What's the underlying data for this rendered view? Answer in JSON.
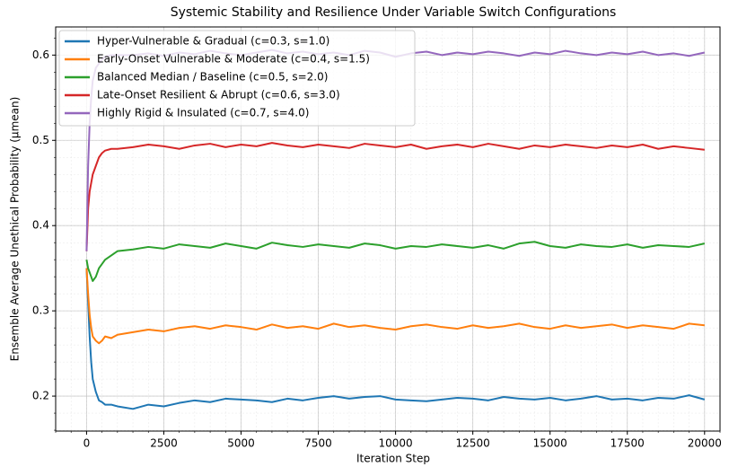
{
  "chart_data": {
    "type": "line",
    "title": "Systemic Stability and Resilience Under Variable Switch Configurations",
    "xlabel": "Iteration Step",
    "ylabel": "Ensemble Average Unethical Probability (μmean)",
    "x": [
      0,
      50,
      100,
      150,
      200,
      300,
      400,
      500,
      600,
      800,
      1000,
      1500,
      2000,
      2500,
      3000,
      3500,
      4000,
      4500,
      5000,
      5500,
      6000,
      6500,
      7000,
      7500,
      8000,
      8500,
      9000,
      9500,
      10000,
      10500,
      11000,
      11500,
      12000,
      12500,
      13000,
      13500,
      14000,
      14500,
      15000,
      15500,
      16000,
      16500,
      17000,
      17500,
      18000,
      18500,
      19000,
      19500,
      20000
    ],
    "series": [
      {
        "name": "Hyper-Vulnerable & Gradual (c=0.3, s=1.0)",
        "color": "#1f77b4",
        "values": [
          0.35,
          0.31,
          0.27,
          0.24,
          0.22,
          0.205,
          0.195,
          0.193,
          0.19,
          0.19,
          0.188,
          0.185,
          0.19,
          0.188,
          0.192,
          0.195,
          0.193,
          0.197,
          0.196,
          0.195,
          0.193,
          0.197,
          0.195,
          0.198,
          0.2,
          0.197,
          0.199,
          0.2,
          0.196,
          0.195,
          0.194,
          0.196,
          0.198,
          0.197,
          0.195,
          0.199,
          0.197,
          0.196,
          0.198,
          0.195,
          0.197,
          0.2,
          0.196,
          0.197,
          0.195,
          0.198,
          0.197,
          0.201,
          0.196
        ]
      },
      {
        "name": "Early-Onset Vulnerable & Moderate (c=0.4, s=1.5)",
        "color": "#ff7f0e",
        "values": [
          0.35,
          0.32,
          0.295,
          0.28,
          0.27,
          0.265,
          0.262,
          0.265,
          0.27,
          0.268,
          0.272,
          0.275,
          0.278,
          0.276,
          0.28,
          0.282,
          0.279,
          0.283,
          0.281,
          0.278,
          0.284,
          0.28,
          0.282,
          0.279,
          0.285,
          0.281,
          0.283,
          0.28,
          0.278,
          0.282,
          0.284,
          0.281,
          0.279,
          0.283,
          0.28,
          0.282,
          0.285,
          0.281,
          0.279,
          0.283,
          0.28,
          0.282,
          0.284,
          0.28,
          0.283,
          0.281,
          0.279,
          0.285,
          0.283
        ]
      },
      {
        "name": "Balanced Median / Baseline (c=0.5, s=2.0)",
        "color": "#2ca02c",
        "values": [
          0.36,
          0.35,
          0.345,
          0.34,
          0.335,
          0.34,
          0.35,
          0.355,
          0.36,
          0.365,
          0.37,
          0.372,
          0.375,
          0.373,
          0.378,
          0.376,
          0.374,
          0.379,
          0.376,
          0.373,
          0.38,
          0.377,
          0.375,
          0.378,
          0.376,
          0.374,
          0.379,
          0.377,
          0.373,
          0.376,
          0.375,
          0.378,
          0.376,
          0.374,
          0.377,
          0.373,
          0.379,
          0.381,
          0.376,
          0.374,
          0.378,
          0.376,
          0.375,
          0.378,
          0.374,
          0.377,
          0.376,
          0.375,
          0.379
        ]
      },
      {
        "name": "Late-Onset Resilient & Abrupt (c=0.6, s=3.0)",
        "color": "#d62728",
        "values": [
          0.37,
          0.42,
          0.44,
          0.45,
          0.46,
          0.47,
          0.48,
          0.485,
          0.488,
          0.49,
          0.49,
          0.492,
          0.495,
          0.493,
          0.49,
          0.494,
          0.496,
          0.492,
          0.495,
          0.493,
          0.497,
          0.494,
          0.492,
          0.495,
          0.493,
          0.491,
          0.496,
          0.494,
          0.492,
          0.495,
          0.49,
          0.493,
          0.495,
          0.492,
          0.496,
          0.493,
          0.49,
          0.494,
          0.492,
          0.495,
          0.493,
          0.491,
          0.494,
          0.492,
          0.495,
          0.49,
          0.493,
          0.491,
          0.489
        ]
      },
      {
        "name": "Highly Rigid & Insulated (c=0.7, s=4.0)",
        "color": "#9467bd",
        "values": [
          0.37,
          0.47,
          0.52,
          0.55,
          0.57,
          0.585,
          0.59,
          0.595,
          0.598,
          0.6,
          0.6,
          0.6,
          0.602,
          0.599,
          0.603,
          0.601,
          0.605,
          0.602,
          0.6,
          0.603,
          0.606,
          0.602,
          0.604,
          0.601,
          0.603,
          0.6,
          0.605,
          0.603,
          0.598,
          0.602,
          0.604,
          0.6,
          0.603,
          0.601,
          0.604,
          0.602,
          0.599,
          0.603,
          0.601,
          0.605,
          0.602,
          0.6,
          0.603,
          0.601,
          0.604,
          0.6,
          0.602,
          0.599,
          0.603
        ]
      }
    ],
    "xlim": [
      -1000,
      20500
    ],
    "xticks": [
      0,
      2500,
      5000,
      7500,
      10000,
      12500,
      15000,
      17500,
      20000
    ],
    "ylim": [
      0.159,
      0.633
    ],
    "yticks": [
      0.2,
      0.3,
      0.4,
      0.5,
      0.6
    ],
    "grid": true,
    "minor_grid": true,
    "legend": "upper left"
  }
}
